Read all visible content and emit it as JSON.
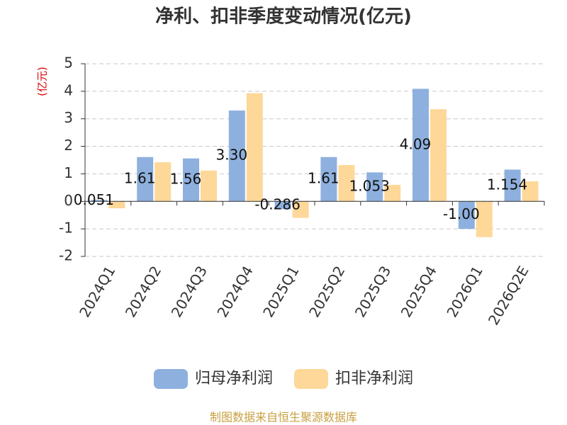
{
  "chart_data": {
    "type": "bar",
    "title": "净利、扣非季度变动情况(亿元)",
    "y_label": "(亿元)",
    "source": "制图数据来自恒生聚源数据库",
    "categories": [
      "2024Q1",
      "2024Q2",
      "2024Q3",
      "2024Q4",
      "2025Q1",
      "2025Q2",
      "2025Q3",
      "2025Q4",
      "2026Q1",
      "2026Q2E"
    ],
    "series": [
      {
        "name": "归母净利润",
        "color": "#8eb0de",
        "values": [
          0.051,
          1.61,
          1.56,
          3.3,
          -0.286,
          1.61,
          1.053,
          4.09,
          -1.0,
          1.154
        ],
        "value_labels": [
          "0.051",
          "1.61",
          "1.56",
          "3.30",
          "-0.286",
          "1.61",
          "1.053",
          "4.09",
          "-1.00",
          "1.154"
        ]
      },
      {
        "name": "扣非净利润",
        "color": "#fdd899",
        "values": [
          -0.25,
          1.42,
          1.12,
          3.93,
          -0.6,
          1.32,
          0.6,
          3.35,
          -1.3,
          0.73
        ]
      }
    ],
    "ylim": [
      -2,
      5
    ],
    "yticks": [
      -2,
      -1,
      0,
      1,
      2,
      3,
      4,
      5
    ],
    "grid": true,
    "legend": "bottom"
  }
}
